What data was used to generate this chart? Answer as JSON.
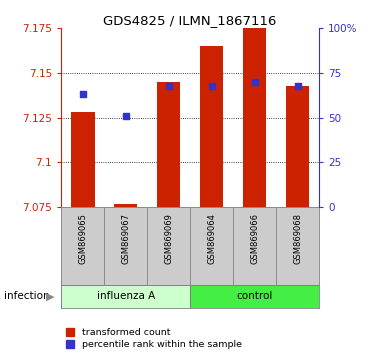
{
  "title": "GDS4825 / ILMN_1867116",
  "samples": [
    "GSM869065",
    "GSM869067",
    "GSM869069",
    "GSM869064",
    "GSM869066",
    "GSM869068"
  ],
  "red_values": [
    7.128,
    7.077,
    7.145,
    7.165,
    7.175,
    7.143
  ],
  "blue_percentiles": [
    63,
    51,
    68,
    68,
    70,
    68
  ],
  "ylim_left": [
    7.075,
    7.175
  ],
  "yticks_left": [
    7.075,
    7.1,
    7.125,
    7.15,
    7.175
  ],
  "yticks_right": [
    0,
    25,
    50,
    75,
    100
  ],
  "ylim_right": [
    0,
    100
  ],
  "bar_bottom": 7.075,
  "left_color": "#cc2200",
  "right_color": "#3333cc",
  "red_bar_width": 0.55,
  "background_color": "#ffffff",
  "sample_box_color": "#cccccc",
  "influenza_color": "#ccffcc",
  "control_color": "#55dd55",
  "legend_red_label": "transformed count",
  "legend_blue_label": "percentile rank within the sample",
  "group_spans": [
    {
      "label": "influenza A",
      "start": 0,
      "end": 3,
      "color": "#ccffcc"
    },
    {
      "label": "control",
      "start": 3,
      "end": 6,
      "color": "#44ee44"
    }
  ]
}
